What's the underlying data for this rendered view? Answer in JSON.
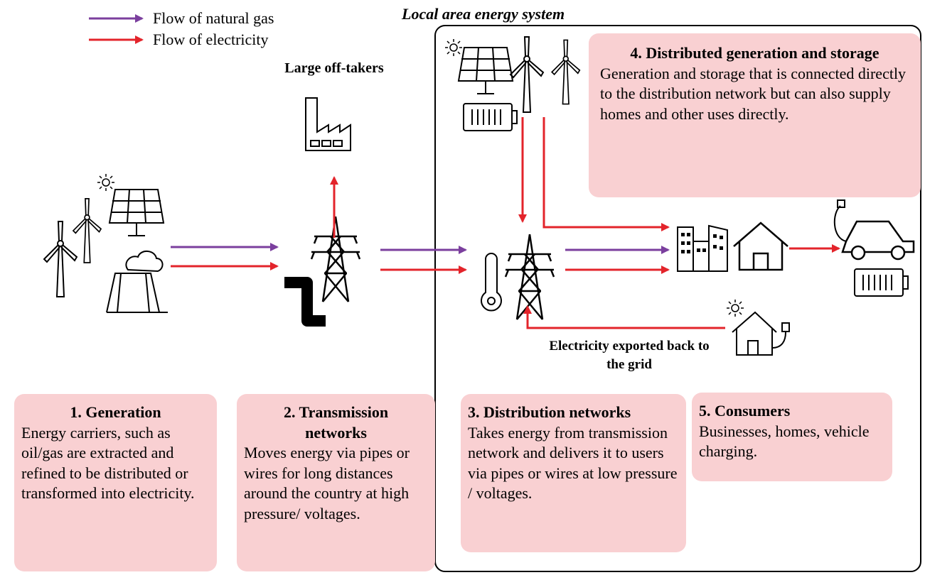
{
  "legend": [
    {
      "label": "Flow of natural gas",
      "color": "#7b3f9e"
    },
    {
      "label": "Flow of electricity",
      "color": "#e3242b"
    }
  ],
  "system_title": "Local area energy system",
  "labels": {
    "large_offtakers": "Large off-takers",
    "exported": "Electricity exported back to the grid"
  },
  "boxes": [
    {
      "title": "1. Generation",
      "body": "Energy carriers, such as oil/gas are extracted and refined to be distributed or transformed into electricity."
    },
    {
      "title": "2. Transmission networks",
      "body": "Moves energy via pipes or wires for long distances around the country at high pressure/ voltages."
    },
    {
      "title": "3. Distribution networks",
      "body": "Takes energy from transmission network and delivers it to users via pipes or wires at low pressure / voltages."
    },
    {
      "title": "4. Distributed generation and storage",
      "body": "Generation and storage that is connected directly to the distribution network but can also supply homes and other uses directly."
    },
    {
      "title": "5. Consumers",
      "body": "Businesses, homes, vehicle charging."
    }
  ]
}
